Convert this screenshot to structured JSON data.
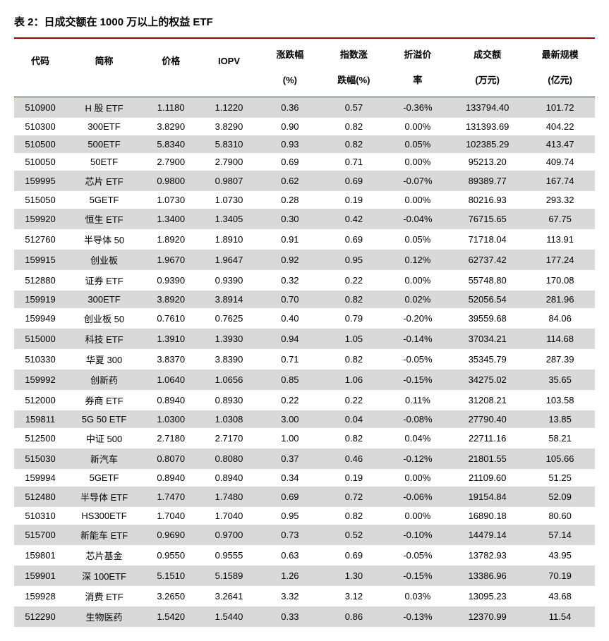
{
  "title": "表 2：日成交额在 1000 万以上的权益 ETF",
  "table": {
    "columns": [
      {
        "key": "code",
        "label": "代码",
        "sub": ""
      },
      {
        "key": "name",
        "label": "简称",
        "sub": ""
      },
      {
        "key": "price",
        "label": "价格",
        "sub": ""
      },
      {
        "key": "iopv",
        "label": "IOPV",
        "sub": ""
      },
      {
        "key": "chg",
        "label": "涨跌幅",
        "sub": "(%)"
      },
      {
        "key": "idx",
        "label": "指数涨",
        "sub": "跌幅(%)"
      },
      {
        "key": "prem",
        "label": "折溢价",
        "sub": "率"
      },
      {
        "key": "vol",
        "label": "成交额",
        "sub": "(万元)"
      },
      {
        "key": "size",
        "label": "最新规模",
        "sub": "(亿元)"
      }
    ],
    "rows": [
      [
        "510900",
        "H 股 ETF",
        "1.1180",
        "1.1220",
        "0.36",
        "0.57",
        "-0.36%",
        "133794.40",
        "101.72"
      ],
      [
        "510300",
        "300ETF",
        "3.8290",
        "3.8290",
        "0.90",
        "0.82",
        "0.00%",
        "131393.69",
        "404.22"
      ],
      [
        "510500",
        "500ETF",
        "5.8340",
        "5.8310",
        "0.93",
        "0.82",
        "0.05%",
        "102385.29",
        "413.47"
      ],
      [
        "510050",
        "50ETF",
        "2.7900",
        "2.7900",
        "0.69",
        "0.71",
        "0.00%",
        "95213.20",
        "409.74"
      ],
      [
        "159995",
        "芯片 ETF",
        "0.9800",
        "0.9807",
        "0.62",
        "0.69",
        "-0.07%",
        "89389.77",
        "167.74"
      ],
      [
        "515050",
        "5GETF",
        "1.0730",
        "1.0730",
        "0.28",
        "0.19",
        "0.00%",
        "80216.93",
        "293.32"
      ],
      [
        "159920",
        "恒生 ETF",
        "1.3400",
        "1.3405",
        "0.30",
        "0.42",
        "-0.04%",
        "76715.65",
        "67.75"
      ],
      [
        "512760",
        "半导体 50",
        "1.8920",
        "1.8910",
        "0.91",
        "0.69",
        "0.05%",
        "71718.04",
        "113.91"
      ],
      [
        "159915",
        "创业板",
        "1.9670",
        "1.9647",
        "0.92",
        "0.95",
        "0.12%",
        "62737.42",
        "177.24"
      ],
      [
        "512880",
        "证券 ETF",
        "0.9390",
        "0.9390",
        "0.32",
        "0.22",
        "0.00%",
        "55748.80",
        "170.08"
      ],
      [
        "159919",
        "300ETF",
        "3.8920",
        "3.8914",
        "0.70",
        "0.82",
        "0.02%",
        "52056.54",
        "281.96"
      ],
      [
        "159949",
        "创业板 50",
        "0.7610",
        "0.7625",
        "0.40",
        "0.79",
        "-0.20%",
        "39559.68",
        "84.06"
      ],
      [
        "515000",
        "科技 ETF",
        "1.3910",
        "1.3930",
        "0.94",
        "1.05",
        "-0.14%",
        "37034.21",
        "114.68"
      ],
      [
        "510330",
        "华夏 300",
        "3.8370",
        "3.8390",
        "0.71",
        "0.82",
        "-0.05%",
        "35345.79",
        "287.39"
      ],
      [
        "159992",
        "创新药",
        "1.0640",
        "1.0656",
        "0.85",
        "1.06",
        "-0.15%",
        "34275.02",
        "35.65"
      ],
      [
        "512000",
        "券商 ETF",
        "0.8940",
        "0.8930",
        "0.22",
        "0.22",
        "0.11%",
        "31208.21",
        "103.58"
      ],
      [
        "159811",
        "5G 50 ETF",
        "1.0300",
        "1.0308",
        "3.00",
        "0.04",
        "-0.08%",
        "27790.40",
        "13.85"
      ],
      [
        "512500",
        "中证 500",
        "2.7180",
        "2.7170",
        "1.00",
        "0.82",
        "0.04%",
        "22711.16",
        "58.21"
      ],
      [
        "515030",
        "新汽车",
        "0.8070",
        "0.8080",
        "0.37",
        "0.46",
        "-0.12%",
        "21801.55",
        "105.66"
      ],
      [
        "159994",
        "5GETF",
        "0.8940",
        "0.8940",
        "0.34",
        "0.19",
        "0.00%",
        "21109.60",
        "51.25"
      ],
      [
        "512480",
        "半导体 ETF",
        "1.7470",
        "1.7480",
        "0.69",
        "0.72",
        "-0.06%",
        "19154.84",
        "52.09"
      ],
      [
        "510310",
        "HS300ETF",
        "1.7040",
        "1.7040",
        "0.95",
        "0.82",
        "0.00%",
        "16890.18",
        "80.60"
      ],
      [
        "515700",
        "新能车 ETF",
        "0.9690",
        "0.9700",
        "0.73",
        "0.52",
        "-0.10%",
        "14479.14",
        "57.14"
      ],
      [
        "159801",
        "芯片基金",
        "0.9550",
        "0.9555",
        "0.63",
        "0.69",
        "-0.05%",
        "13782.93",
        "43.95"
      ],
      [
        "159901",
        "深 100ETF",
        "5.1510",
        "5.1589",
        "1.26",
        "1.30",
        "-0.15%",
        "13386.96",
        "70.19"
      ],
      [
        "159928",
        "消费 ETF",
        "3.2650",
        "3.2641",
        "3.32",
        "3.12",
        "0.03%",
        "13095.23",
        "43.68"
      ],
      [
        "512290",
        "生物医药",
        "1.5420",
        "1.5440",
        "0.33",
        "0.86",
        "-0.13%",
        "12370.99",
        "11.54"
      ]
    ],
    "header_border_color": "#a00000",
    "odd_row_bg": "#d9d9d9",
    "even_row_bg": "#ffffff",
    "font_size_body": 13,
    "font_size_title": 15
  }
}
